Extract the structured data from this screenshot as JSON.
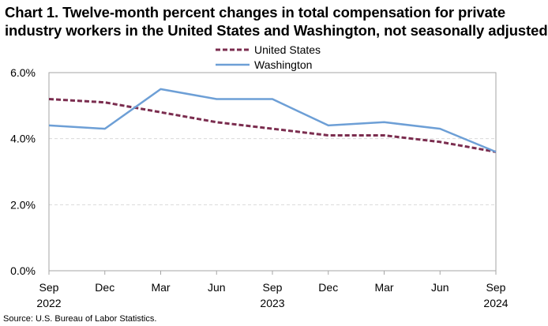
{
  "title": {
    "line1": "Chart 1. Twelve-month percent changes in total compensation for private",
    "line2": "industry workers in the United States and Washington, not seasonally adjusted"
  },
  "source": "Source: U.S. Bureau of Labor Statistics.",
  "chart_data": {
    "type": "line",
    "title": "Chart 1. Twelve-month percent changes in total compensation for private industry workers in the United States and Washington, not seasonally adjusted",
    "categories": [
      "Sep",
      "Dec",
      "Mar",
      "Jun",
      "Sep",
      "Dec",
      "Mar",
      "Jun",
      "Sep"
    ],
    "year_labels": [
      "2022",
      "",
      "",
      "",
      "2023",
      "",
      "",
      "",
      "2024"
    ],
    "ylim": [
      0,
      6
    ],
    "yticks": [
      0,
      2,
      4,
      6
    ],
    "ytick_labels": [
      "0.0%",
      "2.0%",
      "4.0%",
      "6.0%"
    ],
    "grid": true,
    "legend_position": "top-center",
    "series": [
      {
        "name": "United States",
        "style": "dashed",
        "color": "#7b2d4f",
        "values": [
          5.2,
          5.1,
          4.8,
          4.5,
          4.3,
          4.1,
          4.1,
          3.9,
          3.6
        ]
      },
      {
        "name": "Washington",
        "style": "solid",
        "color": "#6d9fd6",
        "values": [
          4.4,
          4.3,
          5.5,
          5.2,
          5.2,
          4.4,
          4.5,
          4.3,
          3.6
        ]
      }
    ]
  }
}
